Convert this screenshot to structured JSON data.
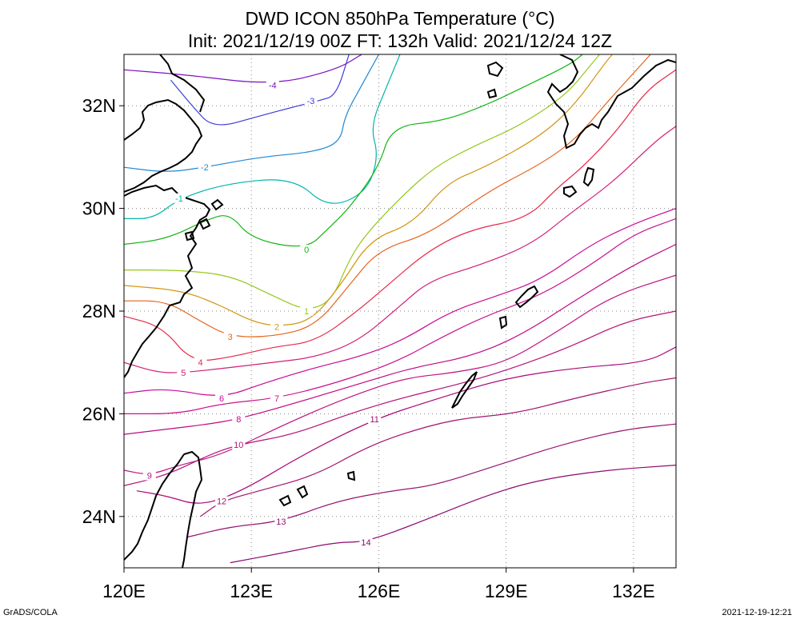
{
  "title_line1": "DWD ICON 850hPa Temperature (°C)",
  "title_line2": "Init: 2021/12/19 00Z  FT: 132h  Valid: 2021/12/24 12Z",
  "footer_left": "GrADS/COLA",
  "footer_right": "2021-12-19-12:21",
  "map": {
    "lon_range": [
      120,
      133
    ],
    "lat_range": [
      23,
      33
    ],
    "lon_ticks": [
      {
        "v": 120,
        "label": "120E"
      },
      {
        "v": 123,
        "label": "123E"
      },
      {
        "v": 126,
        "label": "126E"
      },
      {
        "v": 129,
        "label": "129E"
      },
      {
        "v": 132,
        "label": "132E"
      }
    ],
    "lat_ticks": [
      {
        "v": 24,
        "label": "24N"
      },
      {
        "v": 26,
        "label": "26N"
      },
      {
        "v": 28,
        "label": "28N"
      },
      {
        "v": 30,
        "label": "30N"
      },
      {
        "v": 32,
        "label": "32N"
      }
    ],
    "grid": "dotted",
    "contours": [
      {
        "level": -4,
        "color": "#7a10c0",
        "label": "-4",
        "label_at": [
          123.5,
          32.4
        ],
        "pts": [
          [
            120,
            32.7
          ],
          [
            121.5,
            32.6
          ],
          [
            123.5,
            32.4
          ],
          [
            125,
            32.7
          ],
          [
            125.6,
            33
          ]
        ]
      },
      {
        "level": -3,
        "color": "#3c3cdc",
        "label": "-3",
        "label_at": [
          124.4,
          32.1
        ],
        "pts": [
          [
            121.1,
            32.5
          ],
          [
            121.6,
            32.0
          ],
          [
            122.1,
            31.55
          ],
          [
            123.2,
            31.8
          ],
          [
            124.1,
            32.0
          ],
          [
            124.6,
            32.1
          ],
          [
            125,
            32.2
          ],
          [
            125.3,
            33
          ]
        ]
      },
      {
        "level": -2,
        "color": "#1e87d2",
        "label": "-2",
        "label_at": [
          121.9,
          30.8
        ],
        "pts": [
          [
            120,
            30.8
          ],
          [
            121,
            30.7
          ],
          [
            121.9,
            30.8
          ],
          [
            123.2,
            31.0
          ],
          [
            124.5,
            31.1
          ],
          [
            125.1,
            31.3
          ],
          [
            125.2,
            31.8
          ],
          [
            125.6,
            32.4
          ],
          [
            126,
            33
          ]
        ]
      },
      {
        "level": -1,
        "color": "#00b4aa",
        "label": "-1",
        "label_at": [
          121.3,
          30.2
        ],
        "pts": [
          [
            120,
            29.8
          ],
          [
            120.7,
            29.8
          ],
          [
            121.3,
            30.2
          ],
          [
            122.5,
            30.5
          ],
          [
            124,
            30.6
          ],
          [
            124.8,
            30.0
          ],
          [
            125.7,
            30.3
          ],
          [
            126.0,
            31.0
          ],
          [
            125.8,
            31.6
          ],
          [
            126.2,
            32.4
          ],
          [
            126.5,
            33
          ]
        ]
      },
      {
        "level": 0,
        "color": "#14b414",
        "label": "0",
        "label_at": [
          124.3,
          29.2
        ],
        "pts": [
          [
            120,
            29.3
          ],
          [
            121,
            29.4
          ],
          [
            122,
            29.8
          ],
          [
            122.5,
            29.9
          ],
          [
            123,
            29.4
          ],
          [
            124.3,
            29.2
          ],
          [
            124.8,
            29.6
          ],
          [
            125.3,
            30.0
          ],
          [
            126,
            30.8
          ],
          [
            126.3,
            31.6
          ],
          [
            127.5,
            31.7
          ],
          [
            128.5,
            32.0
          ],
          [
            129.5,
            32.4
          ],
          [
            130.5,
            32.8
          ],
          [
            130.8,
            33
          ]
        ]
      },
      {
        "level": 1,
        "color": "#96c81e",
        "label": "1",
        "label_at": [
          124.3,
          28.0
        ],
        "pts": [
          [
            120,
            28.8
          ],
          [
            121.3,
            28.8
          ],
          [
            122.5,
            28.7
          ],
          [
            123.5,
            28.3
          ],
          [
            124.3,
            28.0
          ],
          [
            124.9,
            28.2
          ],
          [
            125.3,
            29.0
          ],
          [
            125.7,
            29.5
          ],
          [
            126.5,
            30.2
          ],
          [
            127.3,
            30.8
          ],
          [
            128.2,
            31.2
          ],
          [
            129.3,
            31.6
          ],
          [
            130.4,
            32.2
          ],
          [
            131.0,
            32.8
          ],
          [
            131.2,
            33
          ]
        ]
      },
      {
        "level": 2,
        "color": "#d29614",
        "label": "2",
        "label_at": [
          123.6,
          27.7
        ],
        "pts": [
          [
            120,
            28.5
          ],
          [
            121.4,
            28.4
          ],
          [
            122.3,
            28.1
          ],
          [
            123.0,
            27.8
          ],
          [
            123.6,
            27.7
          ],
          [
            124.4,
            27.8
          ],
          [
            125.1,
            28.5
          ],
          [
            125.8,
            29.4
          ],
          [
            126.8,
            29.7
          ],
          [
            127.6,
            30.5
          ],
          [
            128.5,
            30.8
          ],
          [
            129.8,
            31.4
          ],
          [
            130.6,
            32.0
          ],
          [
            131.3,
            32.8
          ],
          [
            131.5,
            33
          ]
        ]
      },
      {
        "level": 3,
        "color": "#e6641e",
        "label": "3",
        "label_at": [
          122.5,
          27.5
        ],
        "pts": [
          [
            120,
            28.2
          ],
          [
            121,
            28.2
          ],
          [
            121.8,
            27.8
          ],
          [
            122.5,
            27.5
          ],
          [
            123.5,
            27.5
          ],
          [
            124.5,
            27.7
          ],
          [
            125.3,
            28.5
          ],
          [
            126.0,
            29.2
          ],
          [
            127.2,
            29.5
          ],
          [
            128.5,
            30.3
          ],
          [
            129.9,
            30.9
          ],
          [
            130.7,
            31.4
          ],
          [
            131.3,
            32.0
          ],
          [
            132.4,
            33
          ]
        ]
      },
      {
        "level": 4,
        "color": "#e6284b",
        "label": "4",
        "label_at": [
          121.8,
          27.0
        ],
        "pts": [
          [
            120,
            27.9
          ],
          [
            120.9,
            27.7
          ],
          [
            121.6,
            27.0
          ],
          [
            122.5,
            27.1
          ],
          [
            123.5,
            27.3
          ],
          [
            124.5,
            27.4
          ],
          [
            125.5,
            28.0
          ],
          [
            126.2,
            28.5
          ],
          [
            127.2,
            29.2
          ],
          [
            128.2,
            29.6
          ],
          [
            129.5,
            29.8
          ],
          [
            130.2,
            30.4
          ],
          [
            130.8,
            30.8
          ],
          [
            131.6,
            31.5
          ],
          [
            132.3,
            32.3
          ],
          [
            133,
            32.7
          ]
        ]
      },
      {
        "level": 5,
        "color": "#d21e78",
        "label": "5",
        "label_at": [
          121.4,
          26.8
        ],
        "pts": [
          [
            120,
            27.0
          ],
          [
            120.8,
            26.8
          ],
          [
            121.4,
            26.8
          ],
          [
            122.5,
            26.9
          ],
          [
            123.5,
            27.0
          ],
          [
            124.5,
            27.1
          ],
          [
            125.5,
            27.4
          ],
          [
            126.5,
            28.1
          ],
          [
            127.2,
            28.6
          ],
          [
            128.4,
            28.9
          ],
          [
            129.6,
            29.3
          ],
          [
            130.5,
            29.9
          ],
          [
            131.5,
            30.5
          ],
          [
            132.5,
            31.3
          ],
          [
            133,
            31.6
          ]
        ]
      },
      {
        "level": 6,
        "color": "#c80a96",
        "label": "6",
        "label_at": [
          122.3,
          26.3
        ],
        "pts": [
          [
            120,
            26.4
          ],
          [
            121,
            26.5
          ],
          [
            122.3,
            26.3
          ],
          [
            123.3,
            26.6
          ],
          [
            124.5,
            26.9
          ],
          [
            125.5,
            27.1
          ],
          [
            126.5,
            27.4
          ],
          [
            127.7,
            28.0
          ],
          [
            128.8,
            28.3
          ],
          [
            129.8,
            28.6
          ],
          [
            131,
            29.3
          ],
          [
            132,
            29.7
          ],
          [
            133,
            30.0
          ]
        ]
      },
      {
        "level": 7,
        "color": "#c8148c",
        "label": "7",
        "label_at": [
          123.6,
          26.3
        ],
        "pts": [
          [
            120,
            26.0
          ],
          [
            121.3,
            26.0
          ],
          [
            122.3,
            26.2
          ],
          [
            123.6,
            26.3
          ],
          [
            125,
            26.6
          ],
          [
            126.4,
            27.0
          ],
          [
            127.5,
            27.5
          ],
          [
            128.5,
            27.9
          ],
          [
            129.8,
            28.3
          ],
          [
            131,
            28.9
          ],
          [
            132,
            29.5
          ],
          [
            133,
            29.8
          ]
        ]
      },
      {
        "level": 8,
        "color": "#be0a82",
        "label": "8",
        "label_at": [
          122.7,
          25.9
        ],
        "pts": [
          [
            120,
            25.6
          ],
          [
            121,
            25.7
          ],
          [
            122.0,
            25.8
          ],
          [
            122.7,
            25.9
          ],
          [
            124,
            26.2
          ],
          [
            125.6,
            26.6
          ],
          [
            126.8,
            26.9
          ],
          [
            128.1,
            27.1
          ],
          [
            129.3,
            27.5
          ],
          [
            130.8,
            28.3
          ],
          [
            132.0,
            28.9
          ],
          [
            133,
            29.3
          ]
        ]
      },
      {
        "level": 9,
        "color": "#be1482",
        "label": "9",
        "label_at": [
          120.6,
          24.8
        ],
        "pts": [
          [
            120,
            24.9
          ],
          [
            120.6,
            24.8
          ],
          [
            121.3,
            25.0
          ],
          [
            122.3,
            25.2
          ],
          [
            123.8,
            25.8
          ],
          [
            125.2,
            26.3
          ],
          [
            126.6,
            26.7
          ],
          [
            127.8,
            26.8
          ],
          [
            129,
            27.0
          ],
          [
            130.2,
            27.6
          ],
          [
            131.5,
            28.3
          ],
          [
            133,
            28.7
          ]
        ]
      },
      {
        "level": 10,
        "color": "#b41478",
        "label": "10",
        "label_at": [
          122.7,
          25.4
        ],
        "pts": [
          [
            120,
            24.6
          ],
          [
            121,
            24.8
          ],
          [
            122.0,
            25.2
          ],
          [
            122.7,
            25.4
          ],
          [
            124.0,
            25.6
          ],
          [
            125.3,
            26.0
          ],
          [
            126.5,
            26.3
          ],
          [
            128.0,
            26.6
          ],
          [
            129.2,
            26.9
          ],
          [
            130.5,
            27.3
          ],
          [
            131.8,
            27.8
          ],
          [
            133,
            28.0
          ]
        ]
      },
      {
        "level": 11,
        "color": "#aa0a78",
        "label": "11",
        "label_at": [
          125.9,
          25.9
        ],
        "pts": [
          [
            120.3,
            24.5
          ],
          [
            121,
            24.4
          ],
          [
            121.8,
            24.2
          ],
          [
            122.8,
            24.5
          ],
          [
            124.2,
            25.2
          ],
          [
            125.9,
            25.9
          ],
          [
            127.4,
            26.3
          ],
          [
            129,
            26.7
          ],
          [
            130.7,
            26.9
          ],
          [
            132.3,
            27.0
          ],
          [
            133,
            27.3
          ]
        ]
      },
      {
        "level": 12,
        "color": "#a0146e",
        "label": "12",
        "label_at": [
          122.3,
          24.3
        ],
        "pts": [
          [
            121.8,
            24.0
          ],
          [
            122.3,
            24.3
          ],
          [
            123.2,
            24.5
          ],
          [
            124.5,
            24.8
          ],
          [
            125.6,
            25.3
          ],
          [
            126.5,
            25.6
          ],
          [
            127.8,
            25.9
          ],
          [
            129.2,
            26.0
          ],
          [
            130.6,
            26.3
          ],
          [
            132.2,
            26.6
          ],
          [
            133,
            26.7
          ]
        ]
      },
      {
        "level": 13,
        "color": "#96146e",
        "label": "13",
        "label_at": [
          123.7,
          23.9
        ],
        "pts": [
          [
            121.5,
            23.6
          ],
          [
            122.5,
            23.8
          ],
          [
            123.7,
            23.9
          ],
          [
            125.0,
            24.3
          ],
          [
            126.3,
            24.5
          ],
          [
            127.3,
            24.6
          ],
          [
            128.8,
            25.0
          ],
          [
            130.3,
            25.4
          ],
          [
            131.8,
            25.7
          ],
          [
            133,
            25.8
          ]
        ]
      },
      {
        "level": 14,
        "color": "#8c0a6e",
        "label": "14",
        "label_at": [
          125.7,
          23.5
        ],
        "pts": [
          [
            122.5,
            23.1
          ],
          [
            123.8,
            23.3
          ],
          [
            125.0,
            23.5
          ],
          [
            125.7,
            23.5
          ],
          [
            127.0,
            23.9
          ],
          [
            128.5,
            24.4
          ],
          [
            129.7,
            24.7
          ],
          [
            131.3,
            24.9
          ],
          [
            133,
            25.0
          ]
        ]
      }
    ]
  }
}
